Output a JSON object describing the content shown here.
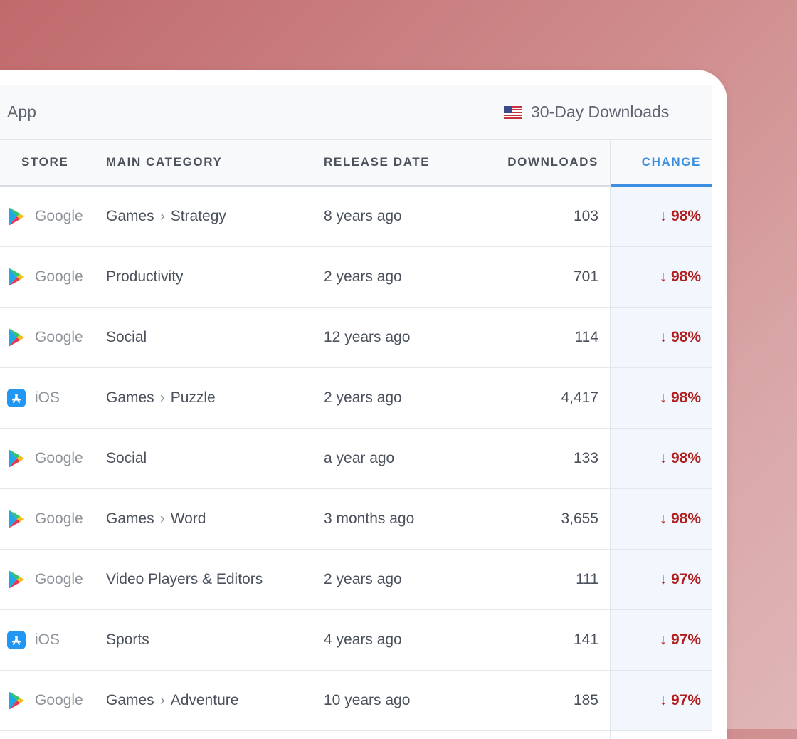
{
  "group_header": {
    "app_label": "App",
    "downloads_label": "30-Day Downloads",
    "region_icon": "us-flag-icon"
  },
  "columns": {
    "store": "STORE",
    "main_category": "MAIN CATEGORY",
    "release_date": "RELEASE DATE",
    "downloads": "DOWNLOADS",
    "change": "CHANGE"
  },
  "colors": {
    "accent": "#3b8ee0",
    "negative": "#b11d1d",
    "ios_blue": "#2196f3"
  },
  "rows": [
    {
      "store_icon": "google-play-icon",
      "store": "Google",
      "category": "Games",
      "subcategory": "Strategy",
      "release": "8 years ago",
      "downloads": "103",
      "change": "↓ 98%"
    },
    {
      "store_icon": "google-play-icon",
      "store": "Google",
      "category": "Productivity",
      "subcategory": "",
      "release": "2 years ago",
      "downloads": "701",
      "change": "↓ 98%"
    },
    {
      "store_icon": "google-play-icon",
      "store": "Google",
      "category": "Social",
      "subcategory": "",
      "release": "12 years ago",
      "downloads": "114",
      "change": "↓ 98%"
    },
    {
      "store_icon": "app-store-icon",
      "store": "iOS",
      "category": "Games",
      "subcategory": "Puzzle",
      "release": "2 years ago",
      "downloads": "4,417",
      "change": "↓ 98%"
    },
    {
      "store_icon": "google-play-icon",
      "store": "Google",
      "category": "Social",
      "subcategory": "",
      "release": "a year ago",
      "downloads": "133",
      "change": "↓ 98%"
    },
    {
      "store_icon": "google-play-icon",
      "store": "Google",
      "category": "Games",
      "subcategory": "Word",
      "release": "3 months ago",
      "downloads": "3,655",
      "change": "↓ 98%"
    },
    {
      "store_icon": "google-play-icon",
      "store": "Google",
      "category": "Video Players & Editors",
      "subcategory": "",
      "release": "2 years ago",
      "downloads": "111",
      "change": "↓ 97%"
    },
    {
      "store_icon": "app-store-icon",
      "store": "iOS",
      "category": "Sports",
      "subcategory": "",
      "release": "4 years ago",
      "downloads": "141",
      "change": "↓ 97%"
    },
    {
      "store_icon": "google-play-icon",
      "store": "Google",
      "category": "Games",
      "subcategory": "Adventure",
      "release": "10 years ago",
      "downloads": "185",
      "change": "↓ 97%"
    }
  ]
}
